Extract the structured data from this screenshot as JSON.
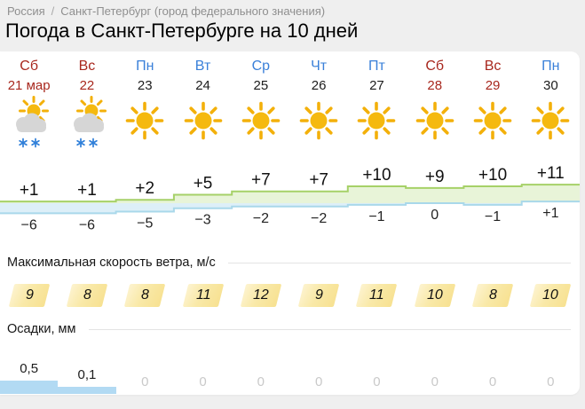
{
  "breadcrumb": {
    "home": "Россия",
    "separator": "/",
    "current": "Санкт-Петербург (город федерального значения)"
  },
  "title": "Погода в Санкт-Петербурге на 10 дней",
  "days": [
    {
      "name": "Сб",
      "date": "21 мар",
      "style": "weekend",
      "icon": "sun-cloud-snow-icon"
    },
    {
      "name": "Вс",
      "date": "22",
      "style": "weekend",
      "icon": "sun-cloud-snow-icon"
    },
    {
      "name": "Пн",
      "date": "23",
      "style": "weekday",
      "icon": "sun-icon"
    },
    {
      "name": "Вт",
      "date": "24",
      "style": "weekday",
      "icon": "sun-icon"
    },
    {
      "name": "Ср",
      "date": "25",
      "style": "weekday",
      "icon": "sun-icon"
    },
    {
      "name": "Чт",
      "date": "26",
      "style": "weekday",
      "icon": "sun-icon"
    },
    {
      "name": "Пт",
      "date": "27",
      "style": "weekday",
      "icon": "sun-icon"
    },
    {
      "name": "Сб",
      "date": "28",
      "style": "weekend",
      "icon": "sun-icon"
    },
    {
      "name": "Вс",
      "date": "29",
      "style": "weekend",
      "icon": "sun-icon"
    },
    {
      "name": "Пн",
      "date": "30",
      "style": "weekday",
      "icon": "sun-icon"
    }
  ],
  "chart_data": {
    "type": "area",
    "categories": [
      "Сб 21 мар",
      "Вс 22",
      "Пн 23",
      "Вт 24",
      "Ср 25",
      "Чт 26",
      "Пт 27",
      "Сб 28",
      "Вс 29",
      "Пн 30"
    ],
    "series": [
      {
        "name": "day-temperature",
        "values": [
          1,
          1,
          2,
          5,
          7,
          7,
          10,
          9,
          10,
          11
        ],
        "labels": [
          "+1",
          "+1",
          "+2",
          "+5",
          "+7",
          "+7",
          "+10",
          "+9",
          "+10",
          "+11"
        ]
      },
      {
        "name": "night-temperature",
        "values": [
          -6,
          -6,
          -5,
          -3,
          -2,
          -2,
          -1,
          0,
          -1,
          1
        ],
        "labels": [
          "−6",
          "−6",
          "−5",
          "−3",
          "−2",
          "−2",
          "−1",
          "0",
          "−1",
          "+1"
        ]
      }
    ],
    "ylim": [
      -8,
      13
    ],
    "grid": false,
    "axes_hidden": true
  },
  "wind": {
    "label": "Максимальная скорость ветра, м/с",
    "values": [
      "9",
      "8",
      "8",
      "11",
      "12",
      "9",
      "11",
      "10",
      "8",
      "10"
    ]
  },
  "precip": {
    "label": "Осадки, мм",
    "values": [
      0.5,
      0.1,
      0,
      0,
      0,
      0,
      0,
      0,
      0,
      0
    ],
    "display": [
      "0,5",
      "0,1",
      "0",
      "0",
      "0",
      "0",
      "0",
      "0",
      "0",
      "0"
    ]
  },
  "colors": {
    "weekend_red": "#a8281e",
    "weekday_blue": "#3a80d9",
    "temp_day_line": "#a6d168",
    "temp_day_fill": "#e8f4d8",
    "temp_night_line": "#a9d8ea",
    "temp_night_fill": "#ddeff8",
    "wind_badge_yellow": "#f9e49a",
    "precip_bar_blue": "#b2daf3",
    "zero_value_gray": "#c9c9c9",
    "sun_yellow": "#f5b90f",
    "cloud_gray": "#d6d6d6",
    "snowflake_blue": "#2f7fd9"
  }
}
